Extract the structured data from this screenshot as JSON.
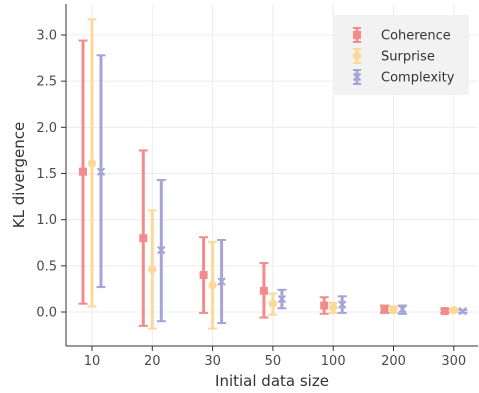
{
  "chart_data": {
    "type": "scatter",
    "title": "",
    "xlabel": "Initial data size",
    "ylabel": "KL divergence",
    "categories": [
      "10",
      "20",
      "30",
      "50",
      "100",
      "200",
      "300"
    ],
    "ylim": [
      -0.38,
      3.3
    ],
    "yticks": [
      "0.0",
      "0.5",
      "1.0",
      "1.5",
      "2.0",
      "2.5",
      "3.0"
    ],
    "grid": true,
    "legend_position": "top-right",
    "series": [
      {
        "name": "Coherence",
        "color": "#f28c8c",
        "marker": "square",
        "values": [
          1.52,
          0.8,
          0.4,
          0.23,
          0.07,
          0.03,
          0.01
        ],
        "lower": [
          0.09,
          -0.15,
          -0.01,
          -0.06,
          -0.02,
          -0.01,
          -0.01
        ],
        "upper": [
          2.94,
          1.75,
          0.81,
          0.53,
          0.16,
          0.07,
          0.03
        ]
      },
      {
        "name": "Surprise",
        "color": "#fcd89a",
        "marker": "circle",
        "values": [
          1.61,
          0.46,
          0.29,
          0.09,
          0.05,
          0.03,
          0.02
        ],
        "lower": [
          0.06,
          -0.18,
          -0.18,
          -0.03,
          -0.01,
          -0.01,
          0.0
        ],
        "upper": [
          3.17,
          1.1,
          0.76,
          0.2,
          0.1,
          0.06,
          0.04
        ]
      },
      {
        "name": "Complexity",
        "color": "#a4a4d6",
        "marker": "x",
        "values": [
          1.52,
          0.67,
          0.33,
          0.14,
          0.08,
          0.03,
          0.01
        ],
        "lower": [
          0.27,
          -0.1,
          -0.12,
          0.04,
          -0.01,
          -0.02,
          -0.01
        ],
        "upper": [
          2.78,
          1.43,
          0.78,
          0.24,
          0.17,
          0.07,
          0.02
        ]
      }
    ]
  }
}
